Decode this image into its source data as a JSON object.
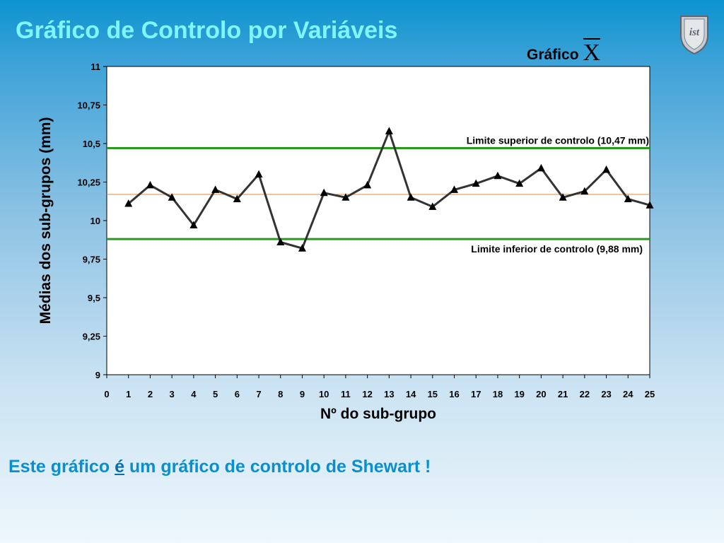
{
  "slide": {
    "title": "Gráfico de Controlo por Variáveis",
    "chart_heading": "Gráfico",
    "chart_heading_symbol": "X",
    "logo_text": "ist",
    "footer": {
      "before": "Este gráfico ",
      "emphasis": "é",
      "after": " um gráfico de controlo de Shewart !"
    }
  },
  "colors": {
    "title": "#7ff6ff",
    "footer": "#0a8fce",
    "series_line": "#333333",
    "control_limits": "#2a9a1e",
    "center_line": "#e28a3a"
  },
  "chart_data": {
    "type": "line",
    "xlabel": "Nº do sub-grupo",
    "ylabel": "Médias dos sub-grupos (mm)",
    "xlim": [
      0,
      25
    ],
    "ylim": [
      9,
      11
    ],
    "x_ticks": [
      0,
      1,
      2,
      3,
      4,
      5,
      6,
      7,
      8,
      9,
      10,
      11,
      12,
      13,
      14,
      15,
      16,
      17,
      18,
      19,
      20,
      21,
      22,
      23,
      24,
      25
    ],
    "y_ticks": [
      9,
      9.25,
      9.5,
      9.75,
      10,
      10.25,
      10.5,
      10.75,
      11
    ],
    "y_tick_labels": [
      "9",
      "9,25",
      "9,5",
      "9,75",
      "10",
      "10,25",
      "10,5",
      "10,75",
      "11"
    ],
    "grid": false,
    "series": [
      {
        "marker": "triangle",
        "x": [
          1,
          2,
          3,
          4,
          5,
          6,
          7,
          8,
          9,
          10,
          11,
          12,
          13,
          14,
          15,
          16,
          17,
          18,
          19,
          20,
          21,
          22,
          23,
          24,
          25
        ],
        "values": [
          10.11,
          10.23,
          10.15,
          9.97,
          10.2,
          10.14,
          10.3,
          9.86,
          9.82,
          10.18,
          10.15,
          10.23,
          10.58,
          10.15,
          10.09,
          10.2,
          10.24,
          10.29,
          10.24,
          10.34,
          10.15,
          10.19,
          10.33,
          10.14,
          10.1
        ]
      }
    ],
    "reference_lines": [
      {
        "id": "ucl",
        "y": 10.47,
        "label": "Limite superior de controlo (10,47 mm)",
        "color": "#2a9a1e"
      },
      {
        "id": "center",
        "y": 10.17,
        "label": "",
        "color": "#e28a3a"
      },
      {
        "id": "lcl",
        "y": 9.88,
        "label": "Limite inferior de controlo (9,88 mm)",
        "color": "#2a9a1e"
      }
    ]
  }
}
